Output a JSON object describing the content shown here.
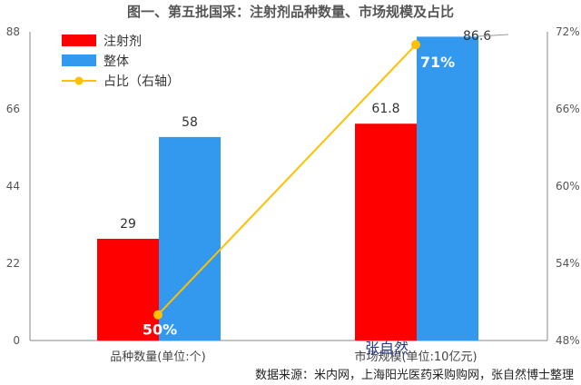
{
  "chart_data": {
    "type": "bar",
    "title": "图一、第五批国采：注射剂品种数量、市场规模及占比",
    "categories": [
      "品种数量(单位:个)",
      "市场规模(单位:10亿元)"
    ],
    "series": [
      {
        "name": "注射剂",
        "type": "bar",
        "axis": "left",
        "color": "#ff0000",
        "values": [
          29,
          61.8
        ],
        "labels": [
          "29",
          "61.8"
        ]
      },
      {
        "name": "整体",
        "type": "bar",
        "axis": "left",
        "color": "#3399ee",
        "values": [
          58,
          86.6
        ],
        "labels": [
          "58",
          "86.6"
        ]
      },
      {
        "name": "占比（右轴）",
        "type": "line",
        "axis": "right",
        "color": "#ffc000",
        "values": [
          50,
          71
        ],
        "labels": [
          "50%",
          "71%"
        ]
      }
    ],
    "y_left": {
      "min": 0,
      "max": 88,
      "ticks": [
        "0",
        "22",
        "44",
        "66",
        "88"
      ]
    },
    "y_right": {
      "min": 48,
      "max": 72,
      "unit": "%",
      "ticks": [
        "48%",
        "54%",
        "60%",
        "66%",
        "72%"
      ]
    },
    "legend_position": "top-left",
    "grid": false
  },
  "watermark": "张自然",
  "source": "数据来源：米内网，上海阳光医药采购购网，张自然博士整理"
}
